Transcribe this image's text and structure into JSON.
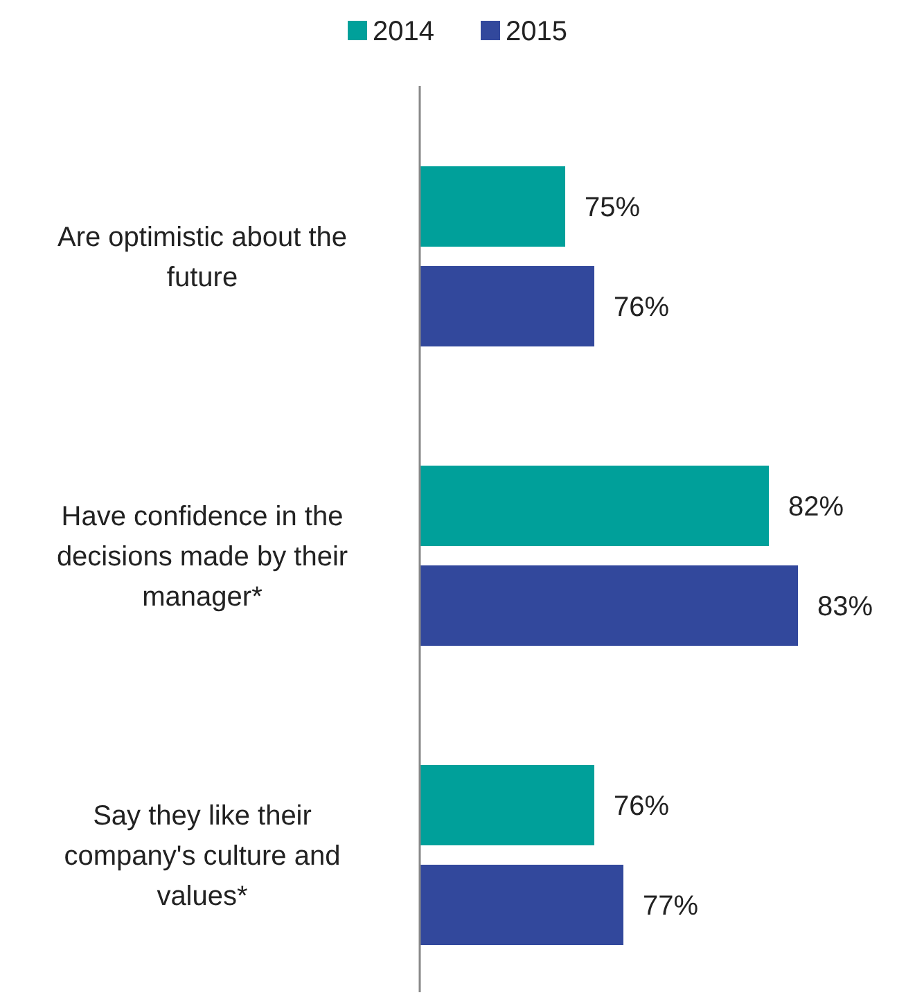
{
  "chart_data": {
    "type": "bar",
    "orientation": "horizontal",
    "categories": [
      "Are optimistic about the future",
      "Have confidence in the decisions made by their manager*",
      "Say they like their company's culture and values*"
    ],
    "series": [
      {
        "name": "2014",
        "color": "#00a09a",
        "values": [
          75,
          82,
          76
        ],
        "value_labels": [
          "75%",
          "82%",
          "76%"
        ]
      },
      {
        "name": "2015",
        "color": "#32489c",
        "values": [
          76,
          83,
          77
        ],
        "value_labels": [
          "76%",
          "83%",
          "77%"
        ]
      }
    ],
    "xlim": [
      70,
      83
    ],
    "legend": "top",
    "tick_labels": "y"
  }
}
